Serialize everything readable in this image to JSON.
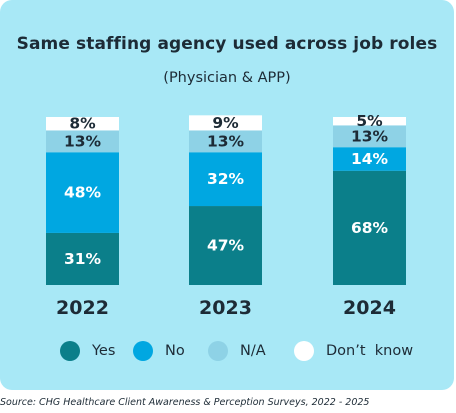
{
  "chart_data": {
    "type": "bar",
    "stacked": true,
    "title": "Same staffing agency used across job roles",
    "subtitle": "(Physician & APP)",
    "categories": [
      "2022",
      "2023",
      "2024"
    ],
    "series": [
      {
        "name": "Yes",
        "color": "#0b7f8a",
        "values": [
          31,
          47,
          68
        ],
        "labels": [
          "31%",
          "47%",
          "68%"
        ]
      },
      {
        "name": "No",
        "color": "#00a7e1",
        "values": [
          48,
          32,
          14
        ],
        "labels": [
          "48%",
          "32%",
          "14%"
        ]
      },
      {
        "name": "N/A",
        "color": "#8ed2e6",
        "values": [
          13,
          13,
          13
        ],
        "labels": [
          "13%",
          "13%",
          "13%"
        ]
      },
      {
        "name": "Don’t  know",
        "color": "#ffffff",
        "values": [
          8,
          9,
          5
        ],
        "labels": [
          "8%",
          "9%",
          "5%"
        ]
      }
    ],
    "label_colors": [
      "#ffffff",
      "#ffffff",
      "#1d2b36",
      "#1d2b36"
    ],
    "ylim": [
      0,
      100
    ],
    "legend_position": "bottom"
  },
  "source": "Source: CHG Healthcare Client Awareness & Perception Surveys, 2022 - 2025"
}
